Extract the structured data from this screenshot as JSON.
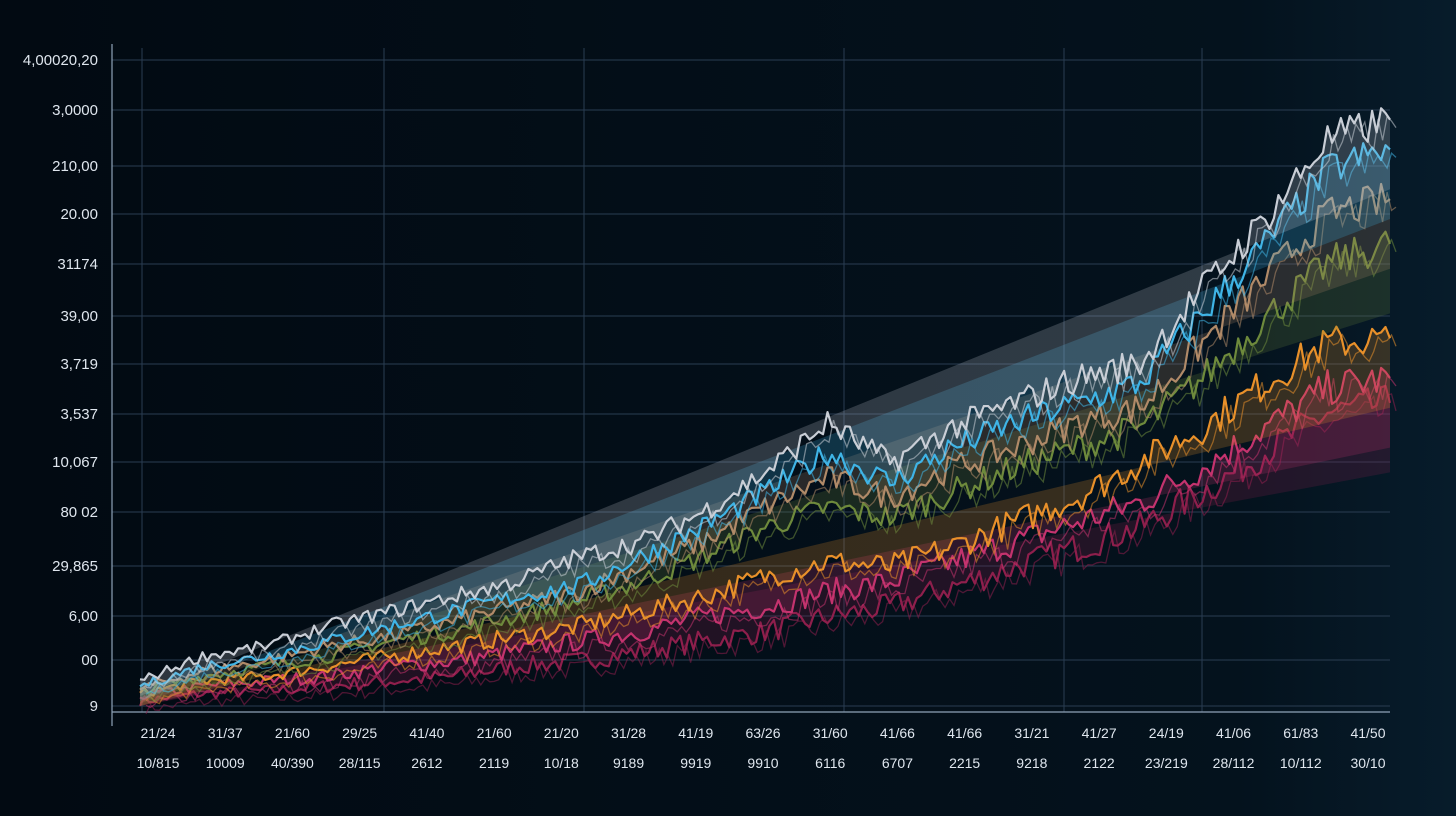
{
  "chart_data": {
    "type": "line",
    "title": "",
    "xlabel": "",
    "ylabel": "",
    "grid": true,
    "legend": "none",
    "ylim": [
      0,
      13
    ],
    "y_tick_labels": [
      "4,00020,20",
      "3,0000",
      "210,00",
      "20.00",
      "31174",
      "39,00",
      "3,719",
      "3,537",
      "10,067",
      "80 02",
      "29,865",
      "6,00",
      "00",
      "9"
    ],
    "x_tick_labels_row1": [
      "21/24",
      "31/37",
      "21/60",
      "29/25",
      "41/40",
      "21/60",
      "21/20",
      "31/28",
      "41/19",
      "63/26",
      "31/60",
      "41/66",
      "41/66",
      "31/21",
      "41/27",
      "24/19",
      "41/06",
      "61/83",
      "41/50"
    ],
    "x_tick_labels_row2": [
      "10/815",
      "10009",
      "40/390",
      "28/115",
      "2612",
      "2119",
      "10/18",
      "9189",
      "9919",
      "9910",
      "6116",
      "6707",
      "2215",
      "9218",
      "2122",
      "23/219",
      "28/112",
      "10/112",
      "30/10"
    ],
    "x": [
      0,
      0.05,
      0.1,
      0.15,
      0.2,
      0.25,
      0.3,
      0.35,
      0.4,
      0.45,
      0.5,
      0.55,
      0.6,
      0.65,
      0.7,
      0.75,
      0.8,
      0.85,
      0.9,
      0.95,
      1
    ],
    "series": [
      {
        "name": "silver",
        "color": "#c9ced6",
        "values": [
          0.5,
          1.0,
          1.2,
          1.6,
          1.9,
          2.2,
          2.5,
          3.0,
          3.3,
          3.9,
          4.7,
          5.7,
          4.9,
          5.6,
          6.1,
          6.6,
          6.9,
          8.4,
          9.8,
          11.4,
          11.8
        ]
      },
      {
        "name": "cyan",
        "color": "#3fb4e6",
        "values": [
          0.4,
          0.8,
          1.0,
          1.3,
          1.6,
          1.9,
          2.2,
          2.4,
          3.0,
          3.6,
          4.3,
          5.1,
          4.5,
          5.2,
          5.7,
          6.1,
          6.5,
          7.9,
          9.3,
          10.8,
          11.2
        ]
      },
      {
        "name": "bronze",
        "color": "#b08a68",
        "values": [
          0.35,
          0.7,
          0.9,
          1.2,
          1.4,
          1.7,
          2.0,
          2.3,
          2.8,
          3.3,
          4.0,
          4.6,
          4.2,
          4.8,
          5.2,
          5.7,
          6.0,
          7.3,
          8.6,
          9.9,
          10.2
        ]
      },
      {
        "name": "green",
        "color": "#6e8a3c",
        "values": [
          0.3,
          0.6,
          0.8,
          1.0,
          1.3,
          1.5,
          1.8,
          2.1,
          2.5,
          3.0,
          3.6,
          4.0,
          3.8,
          4.3,
          4.8,
          5.2,
          5.6,
          6.6,
          7.8,
          8.9,
          9.3
        ]
      },
      {
        "name": "orange",
        "color": "#e8902a",
        "values": [
          0.25,
          0.5,
          0.6,
          0.8,
          1.0,
          1.2,
          1.4,
          1.6,
          1.9,
          2.2,
          2.6,
          2.9,
          2.8,
          3.2,
          3.7,
          4.2,
          4.9,
          5.6,
          6.5,
          7.3,
          7.4
        ]
      },
      {
        "name": "magenta",
        "color": "#c4336e",
        "values": [
          0.2,
          0.4,
          0.5,
          0.6,
          0.8,
          0.9,
          1.1,
          1.3,
          1.5,
          1.8,
          2.0,
          2.3,
          2.5,
          2.9,
          3.3,
          3.7,
          4.1,
          4.8,
          5.6,
          6.4,
          6.6
        ]
      },
      {
        "name": "crimson",
        "color": "#8e1f4c",
        "values": [
          0.1,
          0.25,
          0.3,
          0.4,
          0.5,
          0.6,
          0.8,
          0.9,
          1.1,
          1.3,
          1.5,
          1.8,
          2.0,
          2.4,
          2.8,
          3.2,
          3.6,
          4.3,
          5.1,
          5.9,
          6.1
        ]
      }
    ]
  }
}
